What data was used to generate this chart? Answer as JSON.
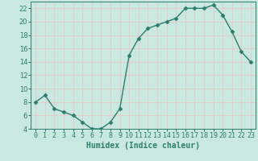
{
  "x": [
    0,
    1,
    2,
    3,
    4,
    5,
    6,
    7,
    8,
    9,
    10,
    11,
    12,
    13,
    14,
    15,
    16,
    17,
    18,
    19,
    20,
    21,
    22,
    23
  ],
  "y": [
    8,
    9,
    7,
    6.5,
    6,
    5,
    4,
    4,
    5,
    7,
    15,
    17.5,
    19,
    19.5,
    20,
    20.5,
    22,
    22,
    22,
    22.5,
    21,
    18.5,
    15.5,
    14
  ],
  "line_color": "#2d7d6e",
  "marker": "D",
  "marker_size": 2.5,
  "bg_color": "#c8e8e0",
  "grid_color": "#e8c8c8",
  "xlabel": "Humidex (Indice chaleur)",
  "ylabel": "",
  "title": "",
  "xlim": [
    -0.5,
    23.5
  ],
  "ylim": [
    4,
    23
  ],
  "yticks": [
    4,
    6,
    8,
    10,
    12,
    14,
    16,
    18,
    20,
    22
  ],
  "xtick_labels": [
    "0",
    "1",
    "2",
    "3",
    "4",
    "5",
    "6",
    "7",
    "8",
    "9",
    "10",
    "11",
    "12",
    "13",
    "14",
    "15",
    "16",
    "17",
    "18",
    "19",
    "20",
    "21",
    "22",
    "23"
  ],
  "font_color": "#2d7d6e",
  "xlabel_fontsize": 7,
  "tick_fontsize": 6,
  "linewidth": 1.0
}
